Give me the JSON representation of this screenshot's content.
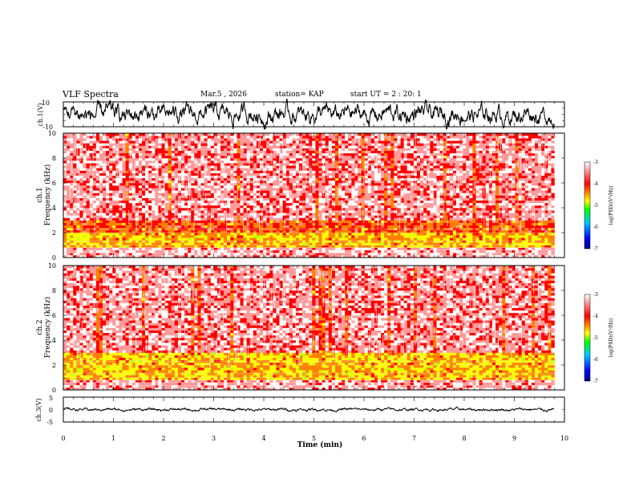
{
  "header": {
    "title": "VLF Spectra",
    "date": "Mar.5 , 2026",
    "station": "station= KAP",
    "start_ut": "start UT =  2 : 20: 1"
  },
  "colors": {
    "background": "#ffffff",
    "trace": "#000000",
    "colormap": [
      "#000080",
      "#0000ff",
      "#00c8ff",
      "#00ff00",
      "#c8ff00",
      "#ffff00",
      "#ff8000",
      "#ff0000",
      "#ff9a9a",
      "#ffffff"
    ]
  },
  "chart_data": [
    {
      "type": "line",
      "panel": "ch1_waveform",
      "ylabel": "ch.1(V)",
      "ylim": [
        -10,
        10
      ],
      "yticks": [
        "10",
        "-10"
      ],
      "xlim": [
        0,
        10
      ],
      "description_values": {
        "typical_amplitude_range_V": [
          -5,
          5
        ]
      }
    },
    {
      "type": "heatmap",
      "panel": "ch1_spectrogram",
      "ylabel": "ch.1\nFrequency (kHz)",
      "ylabel_line1": "ch.1",
      "ylabel_line2": "Frequency (kHz)",
      "ylim": [
        0,
        10
      ],
      "yticks": [
        "0",
        "2",
        "4",
        "6",
        "8",
        "10"
      ],
      "xlim": [
        0,
        9.8
      ],
      "colorbar": {
        "label": "log(PSD)(V²/Hz)",
        "range": [
          -7,
          -3
        ],
        "ticks": [
          "-3",
          "-4",
          "-5",
          "-6",
          "-7"
        ]
      },
      "bands": [
        {
          "freq_kHz": [
            0,
            0.8
          ],
          "log_psd": -3.5
        },
        {
          "freq_kHz": [
            0.8,
            2.0
          ],
          "log_psd": -4.6
        },
        {
          "freq_kHz": [
            2.0,
            3.0
          ],
          "log_psd": -4.2
        },
        {
          "freq_kHz": [
            3.0,
            10.0
          ],
          "log_psd": -3.6
        }
      ]
    },
    {
      "type": "heatmap",
      "panel": "ch2_spectrogram",
      "ylabel": "ch.2\nFrequency (kHz)",
      "ylabel_line1": "ch.2",
      "ylabel_line2": "Frequency (kHz)",
      "ylim": [
        0,
        10
      ],
      "yticks": [
        "0",
        "2",
        "4",
        "6",
        "8",
        "10"
      ],
      "xlim": [
        0,
        9.8
      ],
      "colorbar": {
        "label": "log(PSD)(V²/Hz)",
        "range": [
          -7,
          -3
        ],
        "ticks": [
          "-3",
          "-4",
          "-5",
          "-6",
          "-7"
        ]
      },
      "bands": [
        {
          "freq_kHz": [
            0,
            0.8
          ],
          "log_psd": -3.5
        },
        {
          "freq_kHz": [
            0.8,
            3.0
          ],
          "log_psd": -4.6
        },
        {
          "freq_kHz": [
            3.0,
            10.0
          ],
          "log_psd": -3.6
        }
      ]
    },
    {
      "type": "line",
      "panel": "ch3_waveform",
      "ylabel": "ch.3(V)",
      "ylim": [
        -5,
        5
      ],
      "yticks": [
        "5",
        "0",
        "-5"
      ],
      "xlim": [
        0,
        10
      ],
      "xlabel": "Time (min)",
      "xticks": [
        "0",
        "1",
        "2",
        "3",
        "4",
        "5",
        "6",
        "7",
        "8",
        "9",
        "10"
      ],
      "description_values": {
        "typical_amplitude_range_V": [
          -0.5,
          0.5
        ]
      }
    }
  ]
}
